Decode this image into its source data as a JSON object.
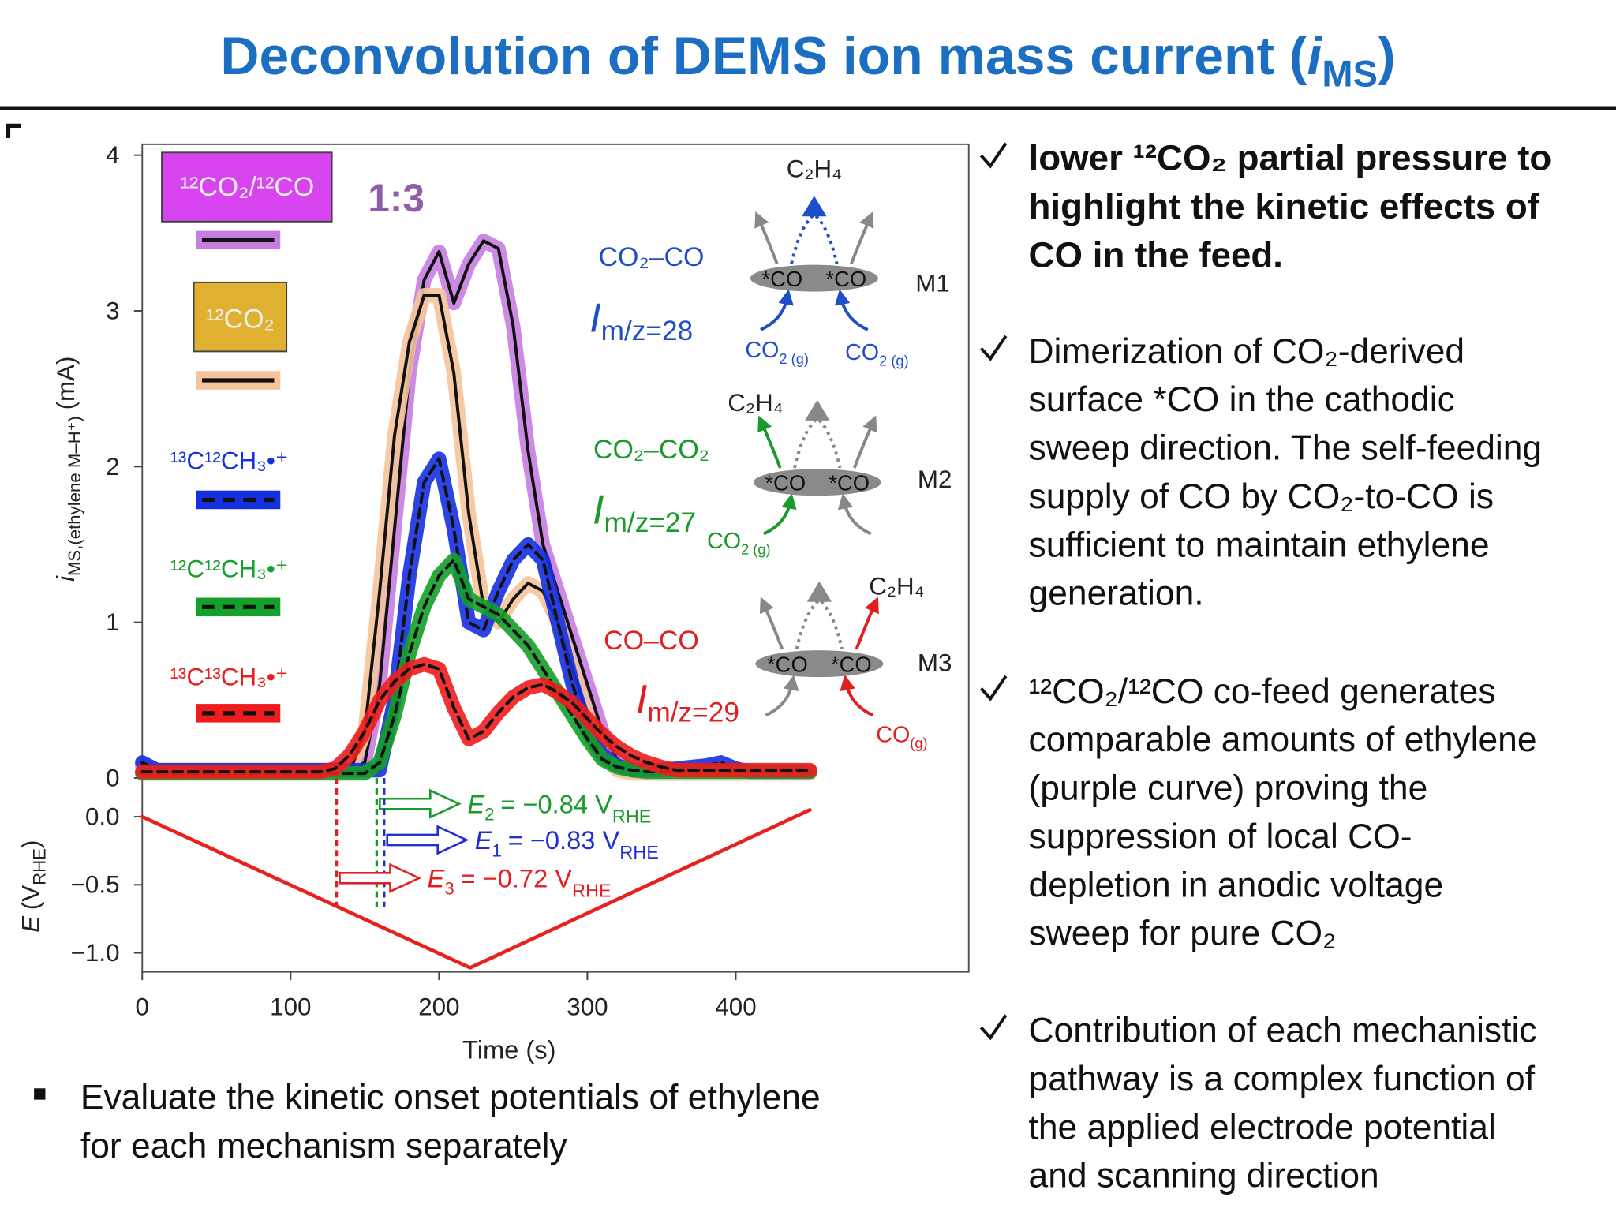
{
  "slide": {
    "title": {
      "main": "Deconvolution of DEMS ion mass current (",
      "symbol": "i",
      "sub": "MS",
      "end": ")",
      "color": "#1b6ec2"
    },
    "left_bullet": [
      "Evaluate the kinetic onset potentials of ethylene",
      "for each mechanism separately"
    ],
    "right_bullets": [
      {
        "bold": true,
        "lines": [
          "lower ¹²CO₂ partial pressure to",
          "highlight the kinetic effects of",
          "CO in the feed."
        ]
      },
      {
        "bold": false,
        "lines": [
          "Dimerization of CO₂-derived",
          "surface *CO in the cathodic",
          "sweep direction. The self-feeding",
          "supply of CO by CO₂-to-CO is",
          "sufficient to maintain ethylene",
          "generation."
        ]
      },
      {
        "bold": false,
        "lines": [
          "¹²CO₂/¹²CO co-feed generates",
          "comparable amounts of ethylene",
          "(purple curve) proving the",
          "suppression of local CO-",
          "depletion in anodic voltage",
          "sweep for pure CO₂"
        ]
      },
      {
        "bold": false,
        "lines": [
          "Contribution of each mechanistic",
          "pathway is a complex function of",
          "the applied electrode potential",
          "and scanning direction"
        ]
      }
    ]
  },
  "chart_data": [
    {
      "type": "line",
      "ylabel": {
        "symbol": "i",
        "sub": "MS,(ethylene M–H⁺)",
        "unit": "(mA)"
      },
      "annotation": {
        "text": "1:3",
        "color": "#8e5ea8"
      },
      "xlim": [
        0,
        557
      ],
      "ylim": [
        -0.1,
        4.07
      ],
      "yticks": [
        0,
        1,
        2,
        3,
        4
      ],
      "x": [
        0,
        10,
        20,
        30,
        40,
        50,
        60,
        70,
        80,
        90,
        100,
        110,
        120,
        130,
        140,
        150,
        160,
        170,
        180,
        190,
        200,
        210,
        220,
        230,
        240,
        250,
        260,
        270,
        280,
        290,
        300,
        310,
        320,
        330,
        340,
        350,
        360,
        370,
        380,
        390,
        400,
        410,
        420,
        430,
        440,
        450
      ],
      "series": [
        {
          "name": "¹²CO₂/¹²CO",
          "color": "#c77ddf",
          "core_color": "#111111",
          "core_dash": false,
          "legend_box": "#d845f0",
          "values": [
            0.08,
            0.05,
            0.05,
            0.05,
            0.05,
            0.05,
            0.05,
            0.05,
            0.05,
            0.05,
            0.05,
            0.05,
            0.05,
            0.05,
            0.05,
            0.1,
            0.6,
            1.6,
            2.6,
            3.2,
            3.38,
            3.05,
            3.3,
            3.45,
            3.4,
            2.9,
            2.1,
            1.5,
            1.2,
            0.9,
            0.6,
            0.3,
            0.12,
            0.05,
            0.03,
            0.03,
            0.03,
            0.03,
            0.03,
            0.03,
            0.03,
            0.03,
            0.03,
            0.03,
            0.03,
            0.03
          ]
        },
        {
          "name": "¹²CO₂",
          "color": "#f5c49a",
          "core_color": "#111111",
          "core_dash": false,
          "legend_box": "#e0b030",
          "values": [
            0.04,
            0.04,
            0.04,
            0.04,
            0.04,
            0.04,
            0.04,
            0.04,
            0.04,
            0.04,
            0.04,
            0.04,
            0.04,
            0.04,
            0.04,
            0.3,
            1.2,
            2.2,
            2.8,
            3.1,
            3.1,
            2.6,
            1.7,
            1.1,
            1.0,
            1.15,
            1.25,
            1.2,
            1.0,
            0.7,
            0.4,
            0.15,
            0.05,
            0.03,
            0.03,
            0.03,
            0.03,
            0.03,
            0.03,
            0.03,
            0.03,
            0.03,
            0.03,
            0.03,
            0.03,
            0.03
          ]
        },
        {
          "name": "¹³C¹²CH₃•⁺",
          "color": "#1530e0",
          "core_color": "#111111",
          "core_dash": true,
          "values": [
            0.1,
            0.05,
            0.05,
            0.05,
            0.05,
            0.05,
            0.05,
            0.05,
            0.05,
            0.05,
            0.05,
            0.05,
            0.05,
            0.05,
            0.05,
            0.05,
            0.05,
            0.5,
            1.3,
            1.9,
            2.05,
            1.6,
            1.0,
            0.95,
            1.2,
            1.4,
            1.5,
            1.4,
            1.0,
            0.6,
            0.3,
            0.15,
            0.08,
            0.05,
            0.05,
            0.05,
            0.06,
            0.07,
            0.08,
            0.1,
            0.06,
            0.04,
            0.04,
            0.04,
            0.04,
            0.04
          ]
        },
        {
          "name": "¹²C¹²CH₃•⁺",
          "color": "#14a02a",
          "core_color": "#111111",
          "core_dash": true,
          "values": [
            0.03,
            0.03,
            0.03,
            0.03,
            0.03,
            0.03,
            0.03,
            0.03,
            0.03,
            0.03,
            0.03,
            0.03,
            0.03,
            0.03,
            0.03,
            0.03,
            0.1,
            0.4,
            0.8,
            1.1,
            1.3,
            1.4,
            1.15,
            1.1,
            1.05,
            0.95,
            0.85,
            0.7,
            0.55,
            0.4,
            0.25,
            0.12,
            0.07,
            0.05,
            0.04,
            0.04,
            0.04,
            0.04,
            0.04,
            0.04,
            0.04,
            0.04,
            0.04,
            0.04,
            0.04,
            0.04
          ]
        },
        {
          "name": "¹³C¹³CH₃•⁺",
          "color": "#ee1c1c",
          "core_color": "#111111",
          "core_dash": true,
          "values": [
            0.04,
            0.04,
            0.04,
            0.04,
            0.04,
            0.04,
            0.04,
            0.04,
            0.04,
            0.04,
            0.04,
            0.04,
            0.04,
            0.06,
            0.15,
            0.3,
            0.5,
            0.62,
            0.7,
            0.73,
            0.7,
            0.45,
            0.25,
            0.3,
            0.42,
            0.52,
            0.58,
            0.6,
            0.55,
            0.48,
            0.38,
            0.28,
            0.2,
            0.14,
            0.1,
            0.07,
            0.05,
            0.05,
            0.05,
            0.05,
            0.05,
            0.05,
            0.05,
            0.05,
            0.05,
            0.05
          ]
        }
      ],
      "mechanisms": [
        {
          "pathway": "CO₂–CO",
          "current": {
            "symbol": "I",
            "sub": "m/z=28"
          },
          "name": "M1",
          "product": "C₂H₄",
          "adsorbates": [
            "*CO",
            "*CO"
          ],
          "feeds": [
            {
              "main": "CO",
              "sub": "2 (g)"
            },
            {
              "main": "CO",
              "sub": "2 (g)"
            }
          ],
          "color": "#1f4fc8"
        },
        {
          "pathway": "CO₂–CO₂",
          "current": {
            "symbol": "I",
            "sub": "m/z=27"
          },
          "name": "M2",
          "product": "C₂H₄",
          "adsorbates": [
            "*CO",
            "*CO"
          ],
          "feeds": [
            {
              "main": "CO",
              "sub": "2 (g)"
            }
          ],
          "color": "#1a9a2a"
        },
        {
          "pathway": "CO–CO",
          "current": {
            "symbol": "I",
            "sub": "m/z=29"
          },
          "name": "M3",
          "product": "C₂H₄",
          "adsorbates": [
            "*CO",
            "*CO"
          ],
          "feeds": [
            {
              "main": "CO",
              "sub": "(g)"
            }
          ],
          "color": "#e02020"
        }
      ]
    },
    {
      "type": "line",
      "ylabel": {
        "symbol": "E",
        "unit": "(V",
        "sub": "RHE",
        "end": ")"
      },
      "xlabel": "Time (s)",
      "xlim": [
        0,
        557
      ],
      "ylim": [
        -1.14,
        0.17
      ],
      "xticks": [
        0,
        100,
        200,
        300,
        400
      ],
      "yticks": [
        {
          "value": 0,
          "label": "0.0"
        },
        {
          "value": -0.5,
          "label": "−0.5"
        },
        {
          "value": -1,
          "label": "−1.0"
        }
      ],
      "x": [
        0,
        221,
        450
      ],
      "series": [
        {
          "color": "#e8201e",
          "values": [
            0,
            -1.11,
            0.05
          ]
        }
      ],
      "onsets": [
        {
          "time": 158,
          "color": "#1a9a2a",
          "symbol": "E",
          "index": "2",
          "value_text": "= −0.84 V",
          "sub": "RHE"
        },
        {
          "time": 163,
          "color": "#2030d0",
          "symbol": "E",
          "index": "1",
          "value_text": "= −0.83 V",
          "sub": "RHE"
        },
        {
          "time": 131,
          "color": "#e02020",
          "symbol": "E",
          "index": "3",
          "value_text": "= −0.72 V",
          "sub": "RHE"
        }
      ]
    }
  ]
}
